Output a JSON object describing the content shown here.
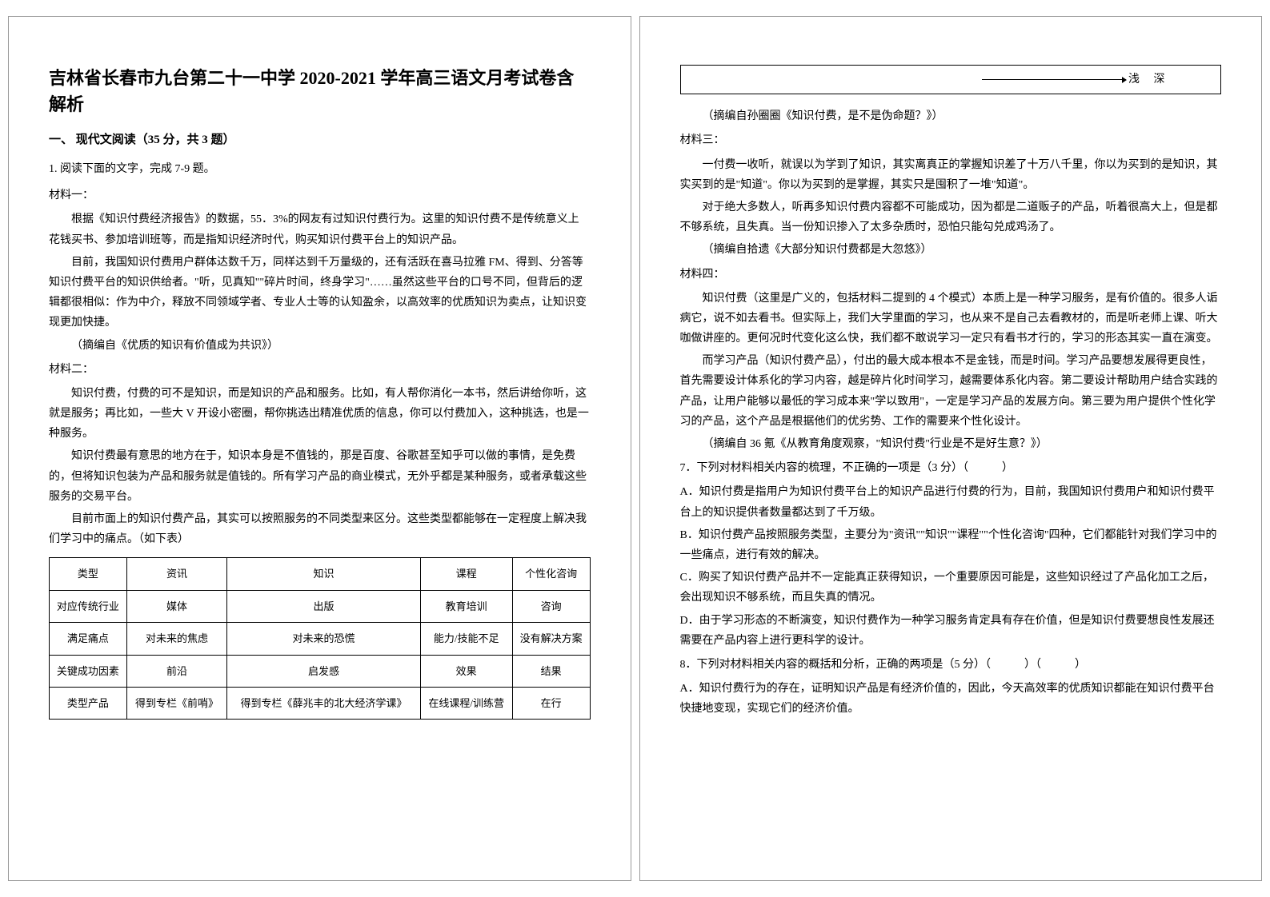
{
  "left": {
    "title": "吉林省长春市九台第二十一中学 2020-2021 学年高三语文月考试卷含解析",
    "section": "一、 现代文阅读（35 分，共 3 题）",
    "q1": "1. 阅读下面的文字，完成 7-9 题。",
    "mat1_label": "材料一：",
    "mat1_p1": "根据《知识付费经济报告》的数据，55．3%的网友有过知识付费行为。这里的知识付费不是传统意义上花钱买书、参加培训班等，而是指知识经济时代，购买知识付费平台上的知识产品。",
    "mat1_p2": "目前，我国知识付费用户群体达数千万，同样达到千万量级的，还有活跃在喜马拉雅 FM、得到、分答等知识付费平台的知识供给者。\"听，见真知\"\"碎片时间，终身学习\"……虽然这些平台的口号不同，但背后的逻辑都很相似：作为中介，释放不同领域学者、专业人士等的认知盈余，以高效率的优质知识为卖点，让知识变现更加快捷。",
    "mat1_source": "（摘编自《优质的知识有价值成为共识》）",
    "mat2_label": "材料二：",
    "mat2_p1": "知识付费，付费的可不是知识，而是知识的产品和服务。比如，有人帮你消化一本书，然后讲给你听，这就是服务；再比如，一些大 V 开设小密圈，帮你挑选出精准优质的信息，你可以付费加入，这种挑选，也是一种服务。",
    "mat2_p2": "知识付费最有意思的地方在于，知识本身是不值钱的，那是百度、谷歌甚至知乎可以做的事情，是免费的，但将知识包装为产品和服务就是值钱的。所有学习产品的商业模式，无外乎都是某种服务，或者承载这些服务的交易平台。",
    "mat2_p3": "目前市面上的知识付费产品，其实可以按照服务的不同类型来区分。这些类型都能够在一定程度上解决我们学习中的痛点。（如下表）",
    "table": {
      "headers": [
        "类型",
        "资讯",
        "知识",
        "课程",
        "个性化咨询"
      ],
      "rows": [
        [
          "对应传统行业",
          "媒体",
          "出版",
          "教育培训",
          "咨询"
        ],
        [
          "满足痛点",
          "对未来的焦虑",
          "对未来的恐慌",
          "能力/技能不足",
          "没有解决方案"
        ],
        [
          "关键成功因素",
          "前沿",
          "启发感",
          "效果",
          "结果"
        ],
        [
          "类型产品",
          "得到专栏《前哨》",
          "得到专栏《薛兆丰的北大经济学课》",
          "在线课程/训练营",
          "在行"
        ]
      ]
    }
  },
  "right": {
    "topbox_left": "浅",
    "topbox_right": "深",
    "mat2_source": "（摘编自孙圈圈《知识付费，是不是伪命题？》）",
    "mat3_label": "材料三：",
    "mat3_p1": "一付费一收听，就误以为学到了知识，其实离真正的掌握知识差了十万八千里，你以为买到的是知识，其实买到的是\"知道\"。你以为买到的是掌握，其实只是囤积了一堆\"知道\"。",
    "mat3_p2": "对于绝大多数人，听再多知识付费内容都不可能成功，因为都是二道贩子的产品，听着很高大上，但是都不够系统，且失真。当一份知识掺入了太多杂质时，恐怕只能勾兑成鸡汤了。",
    "mat3_source": "（摘编自拾遗《大部分知识付费都是大忽悠》）",
    "mat4_label": "材料四：",
    "mat4_p1": "知识付费（这里是广义的，包括材料二提到的 4 个模式）本质上是一种学习服务，是有价值的。很多人诟病它，说不如去看书。但实际上，我们大学里面的学习，也从来不是自己去看教材的，而是听老师上课、听大咖做讲座的。更何况时代变化这么快，我们都不敢说学习一定只有看书才行的，学习的形态其实一直在演变。",
    "mat4_p2": "而学习产品（知识付费产品），付出的最大成本根本不是金钱，而是时间。学习产品要想发展得更良性，首先需要设计体系化的学习内容，越是碎片化时间学习，越需要体系化内容。第二要设计帮助用户结合实践的产品，让用户能够以最低的学习成本来\"学以致用\"，一定是学习产品的发展方向。第三要为用户提供个性化学习的产品，这个产品是根据他们的优劣势、工作的需要来个性化设计。",
    "mat4_source": "（摘编自 36 氪《从教育角度观察，\"知识付费\"行业是不是好生意？》）",
    "q7": "7．下列对材料相关内容的梳理，不正确的一项是（3 分）（　　　）",
    "q7_a": "A．知识付费是指用户为知识付费平台上的知识产品进行付费的行为，目前，我国知识付费用户和知识付费平台上的知识提供者数量都达到了千万级。",
    "q7_b": "B．知识付费产品按照服务类型，主要分为\"资讯\"\"知识\"\"课程\"\"个性化咨询\"四种，它们都能针对我们学习中的一些痛点，进行有效的解决。",
    "q7_c": "C．购买了知识付费产品并不一定能真正获得知识，一个重要原因可能是，这些知识经过了产品化加工之后，会出现知识不够系统，而且失真的情况。",
    "q7_d": "D．由于学习形态的不断演变，知识付费作为一种学习服务肯定具有存在价值，但是知识付费要想良性发展还需要在产品内容上进行更科学的设计。",
    "q8": "8．下列对材料相关内容的概括和分析，正确的两项是（5 分）（　　　）（　　　）",
    "q8_a": "A．知识付费行为的存在，证明知识产品是有经济价值的，因此，今天高效率的优质知识都能在知识付费平台快捷地变现，实现它们的经济价值。"
  }
}
